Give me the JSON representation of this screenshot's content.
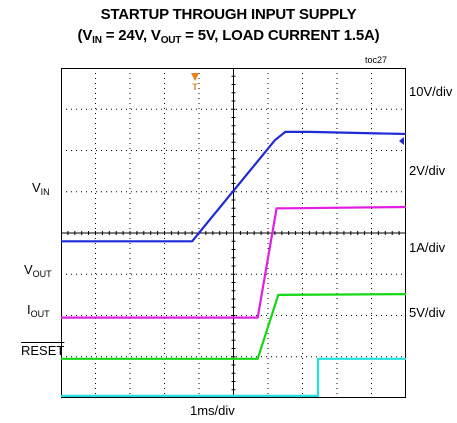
{
  "chart_data": {
    "type": "line",
    "title_line1": "STARTUP THROUGH INPUT SUPPLY",
    "title_line2": {
      "open": "(V",
      "vin_sub": "IN",
      "mid": " = 24V, V",
      "vout_sub": "OUT",
      "close": " = 5V, LOAD CURRENT 1.5A)"
    },
    "figure_ref": "toc27",
    "xlabel": "1ms/div",
    "grid": {
      "divisions_x": 10,
      "divisions_y": 8
    },
    "trigger_marker": "T",
    "series": [
      {
        "name": "V",
        "name_sub": "IN",
        "overline": false,
        "scale": "10V/div",
        "color": "#1f2bd6",
        "points": [
          [
            0.0,
            3.8
          ],
          [
            3.8,
            3.8
          ],
          [
            6.2,
            6.25
          ],
          [
            6.5,
            6.45
          ],
          [
            7.2,
            6.45
          ],
          [
            10.0,
            6.4
          ]
        ]
      },
      {
        "name": "V",
        "name_sub": "OUT",
        "overline": false,
        "scale": "2V/div",
        "color": "#e21ee2",
        "points": [
          [
            0.0,
            1.95
          ],
          [
            5.7,
            1.95
          ],
          [
            6.25,
            4.6
          ],
          [
            6.5,
            4.6
          ],
          [
            10.0,
            4.63
          ]
        ]
      },
      {
        "name": "I",
        "name_sub": "OUT",
        "overline": false,
        "scale": "1A/div",
        "color": "#14d814",
        "points": [
          [
            0.0,
            0.95
          ],
          [
            5.7,
            0.95
          ],
          [
            6.3,
            2.5
          ],
          [
            10.0,
            2.52
          ]
        ]
      },
      {
        "name": "RESET",
        "name_sub": "",
        "overline": true,
        "scale": "5V/div",
        "color": "#22e0e0",
        "points": [
          [
            0.0,
            0.05
          ],
          [
            7.45,
            0.05
          ],
          [
            7.45,
            0.95
          ],
          [
            10.0,
            0.95
          ]
        ]
      }
    ]
  },
  "colors": {
    "trigger_marker": "#e8821a",
    "grid": "#000000"
  }
}
